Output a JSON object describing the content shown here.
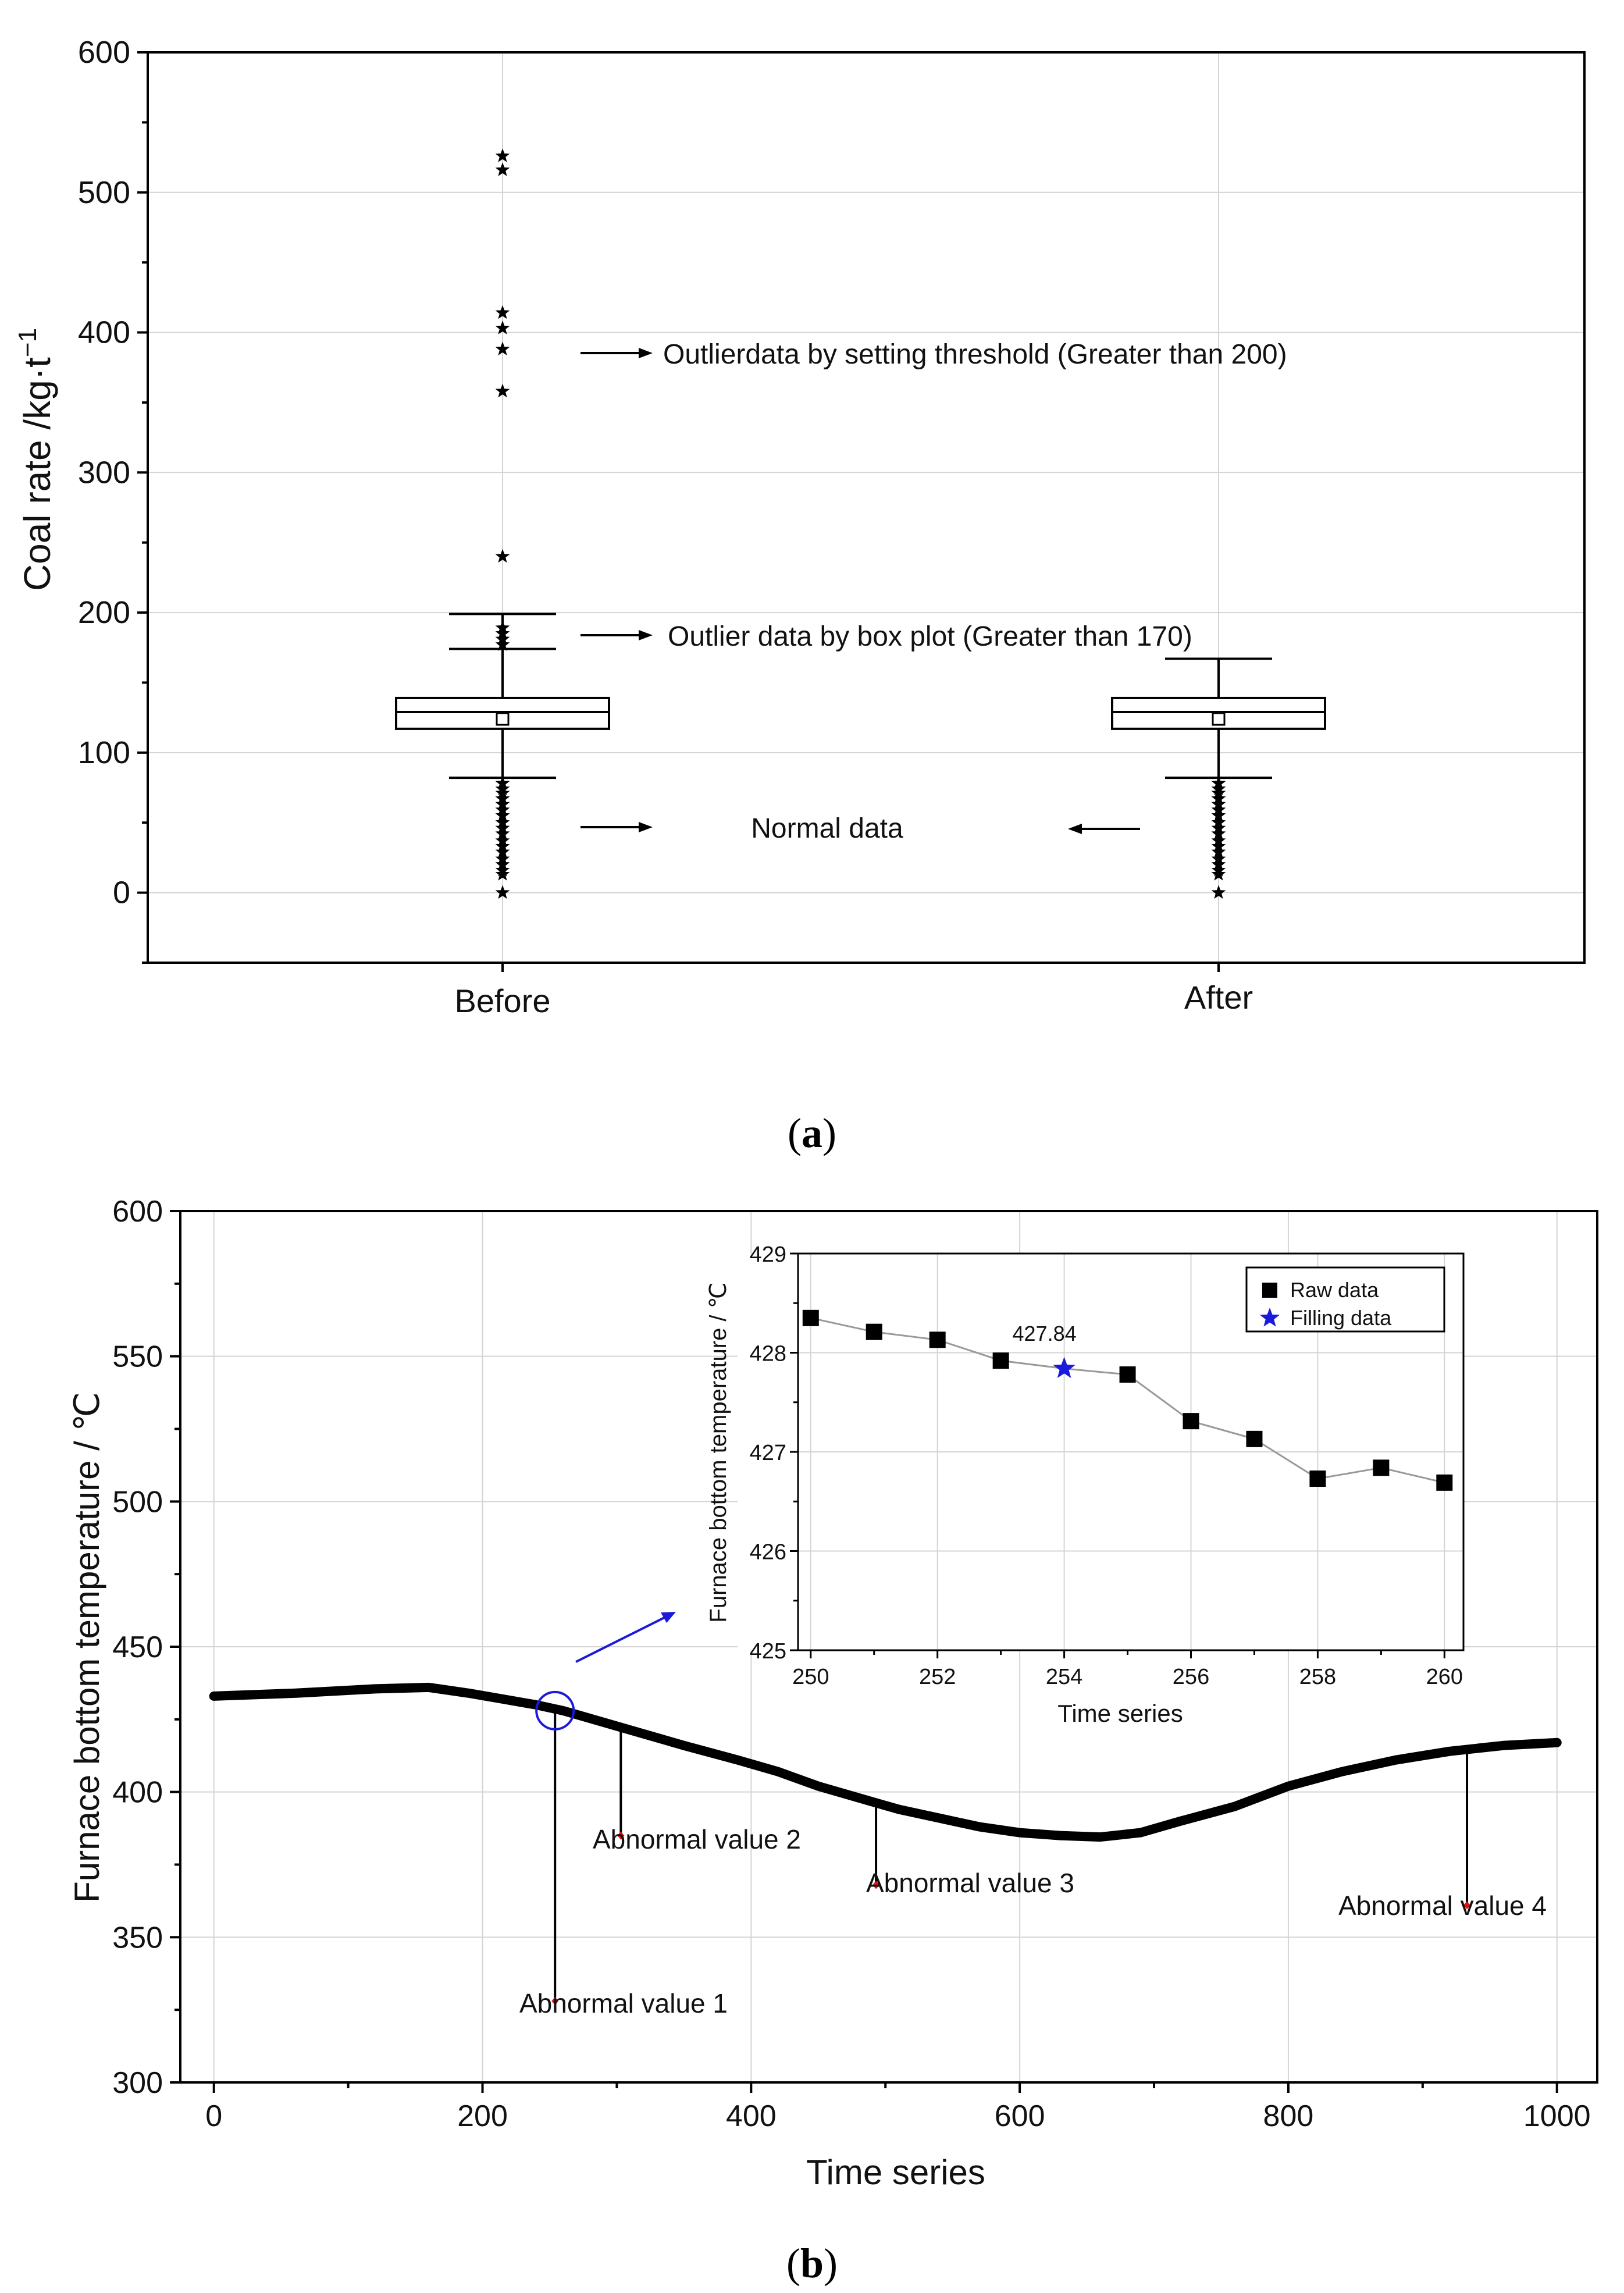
{
  "chart_data": [
    {
      "type": "box",
      "panel_label_open": "(",
      "panel_letter": "a",
      "panel_label_close": ")",
      "ylabel": "Coal rate /kg·t",
      "ylabel_sup": "−1",
      "ylim": [
        -50,
        600
      ],
      "yticks": [
        0,
        100,
        200,
        300,
        400,
        500,
        600
      ],
      "grid": true,
      "categories": [
        "Before",
        "After"
      ],
      "boxes": [
        {
          "name": "Before",
          "q1": 117,
          "median": 129,
          "q3": 139,
          "mean": 124,
          "whisker_low": 82,
          "whisker_high": 174,
          "cap_extra": 199,
          "outliers_low": [
            0,
            13,
            16,
            20,
            24,
            29,
            33,
            37,
            42,
            46,
            50,
            55,
            59,
            63,
            67,
            71,
            74,
            78
          ],
          "outliers_high_box": [
            177,
            181,
            185,
            189
          ],
          "outliers_threshold": [
            240,
            358,
            388,
            403,
            414,
            516,
            526
          ]
        },
        {
          "name": "After",
          "q1": 117,
          "median": 129,
          "q3": 139,
          "mean": 124,
          "whisker_low": 82,
          "whisker_high": 167,
          "outliers_low": [
            0,
            13,
            16,
            20,
            24,
            29,
            33,
            37,
            42,
            46,
            50,
            55,
            59,
            63,
            67,
            71,
            74,
            78
          ],
          "outliers_high_box": [],
          "outliers_threshold": []
        }
      ],
      "annotations": {
        "threshold": "Outlierdata by setting threshold (Greater than 200)",
        "boxplot": "Outlier data by box plot (Greater than 170)",
        "normal": "Normal data"
      }
    },
    {
      "type": "line",
      "panel_label_open": "(",
      "panel_letter": "b",
      "panel_label_close": ")",
      "xlabel": "Time series",
      "ylabel": "Furnace bottom temperature / ℃",
      "xlim": [
        -25,
        1030
      ],
      "ylim": [
        300,
        600
      ],
      "xticks": [
        0,
        200,
        400,
        600,
        800,
        1000
      ],
      "yticks": [
        300,
        350,
        400,
        450,
        500,
        550,
        600
      ],
      "grid": true,
      "curve_x": [
        0,
        60,
        120,
        160,
        190,
        215,
        240,
        260,
        290,
        320,
        350,
        390,
        420,
        450,
        480,
        510,
        540,
        570,
        600,
        630,
        660,
        690,
        720,
        760,
        800,
        840,
        880,
        920,
        960,
        1000
      ],
      "curve_y": [
        433,
        434,
        435.5,
        436,
        434,
        432,
        430,
        428,
        424,
        420,
        416,
        411,
        407,
        402,
        398,
        394,
        391,
        388,
        386,
        385,
        384.5,
        386,
        390,
        395,
        402,
        407,
        411,
        414,
        416,
        417
      ],
      "abnormal": [
        {
          "label": "Abnormal value 1",
          "x": 254,
          "y": 328
        },
        {
          "label": "Abnormal value 2",
          "x": 303,
          "y": 385
        },
        {
          "label": "Abnormal value 3",
          "x": 493,
          "y": 368
        },
        {
          "label": "Abnormal value 4",
          "x": 933,
          "y": 361
        }
      ],
      "inset": {
        "type": "line",
        "xlabel": "Time series",
        "ylabel": "Furnace bottom temperature / ℃",
        "xlim": [
          249.8,
          260.3
        ],
        "ylim": [
          425,
          429
        ],
        "xticks": [
          250,
          252,
          254,
          256,
          258,
          260
        ],
        "yticks": [
          425,
          426,
          427,
          428,
          429
        ],
        "x": [
          250,
          251,
          252,
          253,
          254,
          255,
          256,
          257,
          258,
          259,
          260
        ],
        "y": [
          428.35,
          428.21,
          428.13,
          427.92,
          427.84,
          427.78,
          427.31,
          427.13,
          426.73,
          426.84,
          426.69
        ],
        "filled_index": 4,
        "filled_label": "427.84",
        "legend": [
          "Raw data",
          "Filling data"
        ],
        "colors": {
          "raw": "#000000",
          "filling": "#1a1adb",
          "line": "#999999"
        }
      }
    }
  ]
}
